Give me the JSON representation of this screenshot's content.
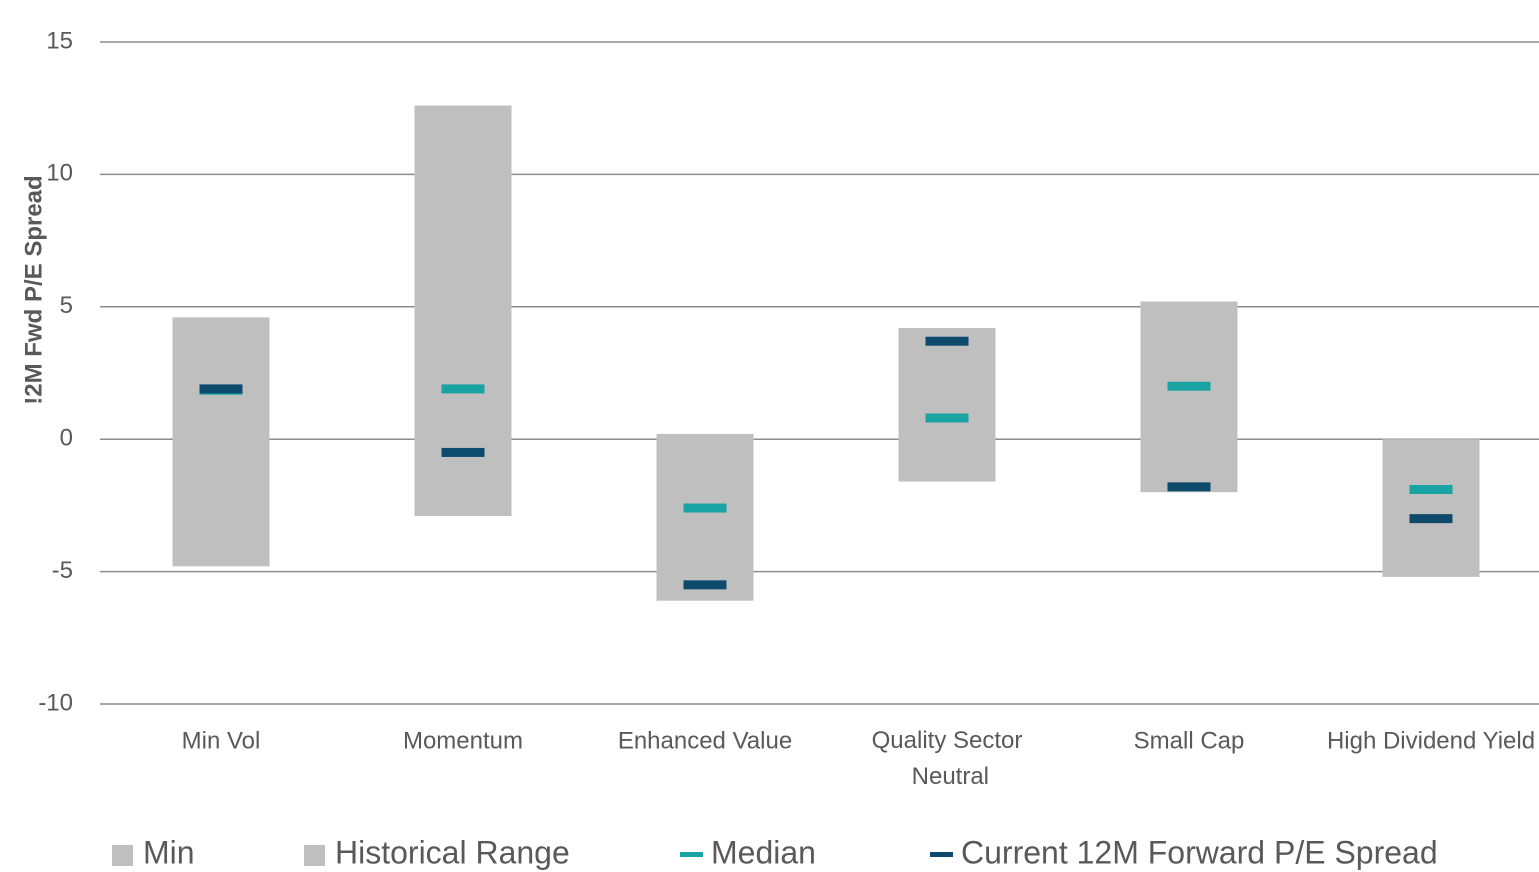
{
  "chart_data": {
    "type": "floating_bar",
    "y_label": "!2M Fwd P/E Spread",
    "categories": [
      "Min Vol",
      "Momentum",
      "Enhanced Value",
      "Quality Sector Neutral",
      "Small Cap",
      "High Dividend Yield"
    ],
    "series": [
      {
        "name": "Min",
        "color": "#bfbfbf",
        "values": [
          -4.8,
          -2.9,
          -6.1,
          -1.6,
          -2.0,
          -5.2
        ]
      },
      {
        "name": "Historical Range",
        "color": "#bfbfbf",
        "values": [
          9.4,
          15.5,
          6.3,
          5.8,
          7.2,
          5.2
        ]
      },
      {
        "name": "Median",
        "color": "#1aa3a3",
        "values": [
          1.85,
          1.9,
          -2.6,
          0.8,
          2.0,
          -1.9
        ]
      },
      {
        "name": "Current 12M Forward P/E Spread",
        "color": "#0e4a6b",
        "values": [
          1.9,
          -0.5,
          -5.5,
          3.7,
          -1.8,
          -3.0
        ]
      }
    ],
    "ylim": [
      -10,
      15
    ],
    "yticks": [
      -10,
      -5,
      0,
      5,
      10,
      15
    ],
    "grid": true
  }
}
